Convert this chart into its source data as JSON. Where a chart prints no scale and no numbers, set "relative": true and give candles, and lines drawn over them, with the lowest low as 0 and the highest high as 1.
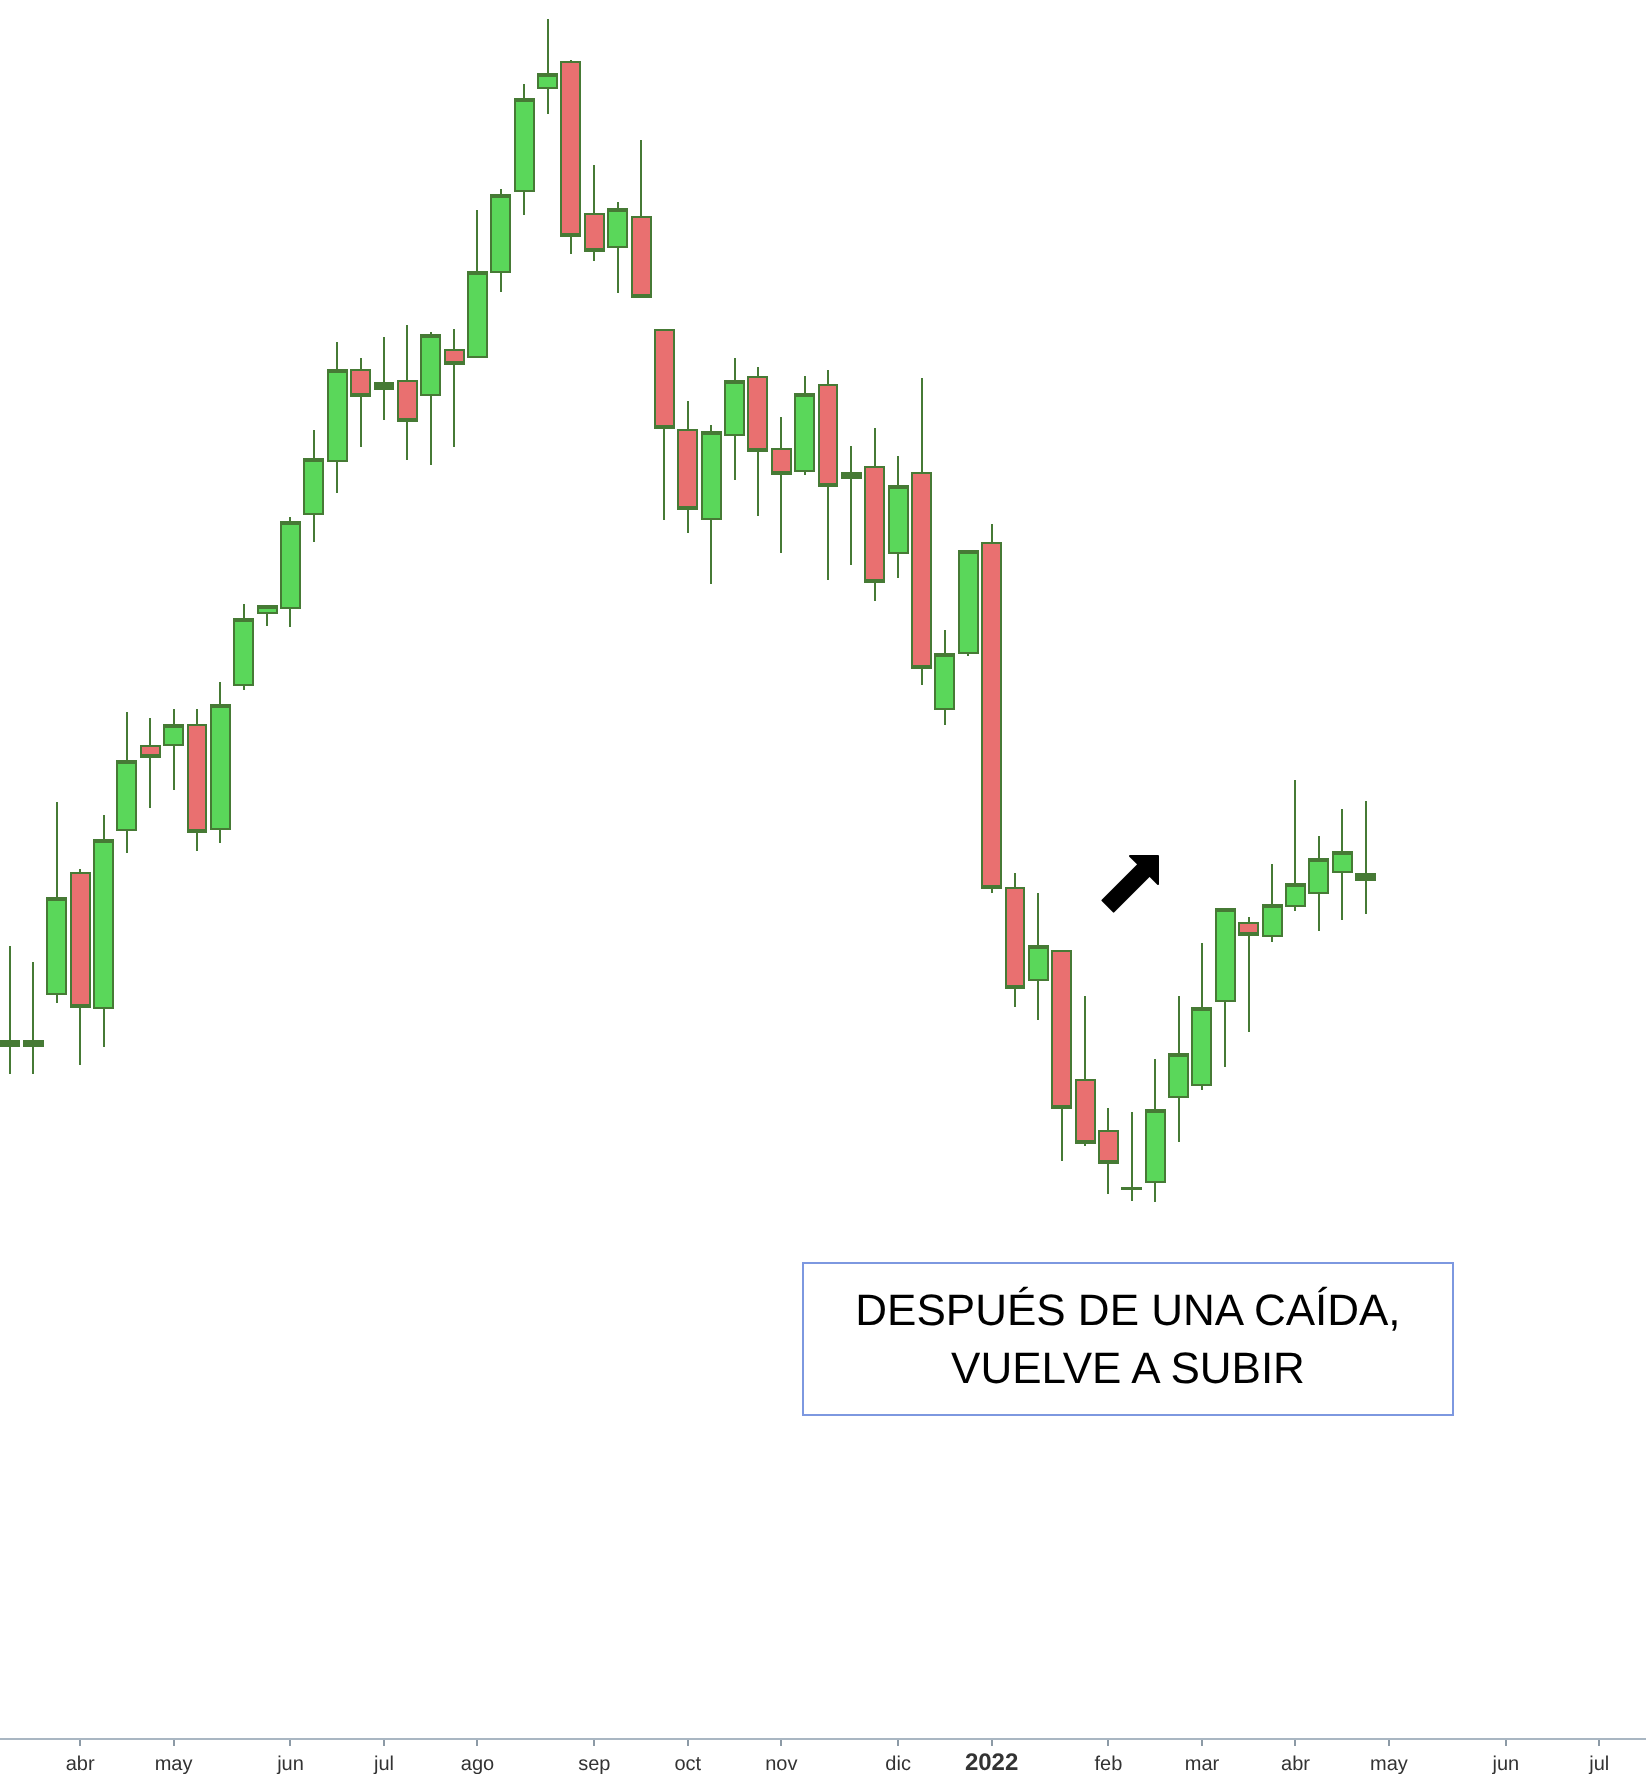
{
  "chart_data": {
    "type": "candlestick",
    "relative": true,
    "x": [
      "2021-03-15",
      "2021-03-22",
      "2021-03-29",
      "2021-04-05",
      "2021-04-12",
      "2021-04-19",
      "2021-04-26",
      "2021-05-03",
      "2021-05-10",
      "2021-05-17",
      "2021-05-24",
      "2021-05-31",
      "2021-06-07",
      "2021-06-14",
      "2021-06-21",
      "2021-06-28",
      "2021-07-05",
      "2021-07-12",
      "2021-07-19",
      "2021-07-26",
      "2021-08-02",
      "2021-08-09",
      "2021-08-16",
      "2021-08-23",
      "2021-08-30",
      "2021-09-06",
      "2021-09-13",
      "2021-09-20",
      "2021-09-27",
      "2021-10-04",
      "2021-10-11",
      "2021-10-18",
      "2021-10-25",
      "2021-11-01",
      "2021-11-08",
      "2021-11-15",
      "2021-11-22",
      "2021-11-29",
      "2021-12-06",
      "2021-12-13",
      "2021-12-20",
      "2021-12-27",
      "2022-01-03",
      "2022-01-10",
      "2022-01-17",
      "2022-01-24",
      "2022-01-31",
      "2022-02-07",
      "2022-02-14",
      "2022-02-21",
      "2022-02-28",
      "2022-03-07",
      "2022-03-14",
      "2022-03-21",
      "2022-03-28",
      "2022-04-04",
      "2022-04-11",
      "2022-04-18",
      "2022-04-25"
    ],
    "ohlc": [
      [
        0.132,
        0.216,
        0.108,
        0.136
      ],
      [
        0.132,
        0.203,
        0.108,
        0.136
      ],
      [
        0.176,
        0.338,
        0.168,
        0.257
      ],
      [
        0.278,
        0.281,
        0.116,
        0.165
      ],
      [
        0.164,
        0.327,
        0.131,
        0.306
      ],
      [
        0.314,
        0.414,
        0.295,
        0.373
      ],
      [
        0.385,
        0.409,
        0.333,
        0.376
      ],
      [
        0.386,
        0.417,
        0.348,
        0.403
      ],
      [
        0.403,
        0.417,
        0.297,
        0.313
      ],
      [
        0.315,
        0.439,
        0.303,
        0.42
      ],
      [
        0.437,
        0.505,
        0.433,
        0.493
      ],
      [
        0.498,
        0.504,
        0.487,
        0.504
      ],
      [
        0.502,
        0.579,
        0.486,
        0.575
      ],
      [
        0.581,
        0.652,
        0.558,
        0.628
      ],
      [
        0.626,
        0.727,
        0.599,
        0.703
      ],
      [
        0.703,
        0.713,
        0.638,
        0.681
      ],
      [
        0.687,
        0.731,
        0.661,
        0.692
      ],
      [
        0.694,
        0.741,
        0.627,
        0.66
      ],
      [
        0.682,
        0.735,
        0.623,
        0.733
      ],
      [
        0.72,
        0.738,
        0.638,
        0.708
      ],
      [
        0.714,
        0.838,
        0.714,
        0.786
      ],
      [
        0.786,
        0.856,
        0.769,
        0.851
      ],
      [
        0.854,
        0.945,
        0.834,
        0.932
      ],
      [
        0.941,
        1,
        0.919,
        0.953
      ],
      [
        0.963,
        0.965,
        0.801,
        0.816
      ],
      [
        0.835,
        0.876,
        0.795,
        0.804
      ],
      [
        0.807,
        0.845,
        0.768,
        0.839
      ],
      [
        0.832,
        0.897,
        0.765,
        0.765
      ],
      [
        0.737,
        0.737,
        0.576,
        0.654
      ],
      [
        0.652,
        0.677,
        0.565,
        0.586
      ],
      [
        0.577,
        0.657,
        0.522,
        0.651
      ],
      [
        0.648,
        0.713,
        0.61,
        0.694
      ],
      [
        0.697,
        0.706,
        0.58,
        0.635
      ],
      [
        0.636,
        0.663,
        0.548,
        0.615
      ],
      [
        0.618,
        0.698,
        0.614,
        0.683
      ],
      [
        0.69,
        0.703,
        0.526,
        0.605
      ],
      [
        0.612,
        0.639,
        0.538,
        0.616
      ],
      [
        0.621,
        0.654,
        0.508,
        0.524
      ],
      [
        0.548,
        0.63,
        0.527,
        0.605
      ],
      [
        0.616,
        0.696,
        0.437,
        0.451
      ],
      [
        0.417,
        0.483,
        0.403,
        0.463
      ],
      [
        0.464,
        0.55,
        0.461,
        0.55
      ],
      [
        0.557,
        0.573,
        0.261,
        0.265
      ],
      [
        0.265,
        0.278,
        0.165,
        0.181
      ],
      [
        0.188,
        0.261,
        0.154,
        0.216
      ],
      [
        0.212,
        0.212,
        0.035,
        0.079
      ],
      [
        0.103,
        0.174,
        0.047,
        0.05
      ],
      [
        0.06,
        0.079,
        0.007,
        0.033
      ],
      [
        0.011,
        0.076,
        0.001,
        0.012
      ],
      [
        0.017,
        0.121,
        0,
        0.078
      ],
      [
        0.089,
        0.174,
        0.051,
        0.125
      ],
      [
        0.099,
        0.219,
        0.095,
        0.164
      ],
      [
        0.17,
        0.248,
        0.114,
        0.248
      ],
      [
        0.236,
        0.241,
        0.144,
        0.226
      ],
      [
        0.225,
        0.286,
        0.22,
        0.251
      ],
      [
        0.25,
        0.357,
        0.246,
        0.269
      ],
      [
        0.261,
        0.309,
        0.229,
        0.29
      ],
      [
        0.279,
        0.332,
        0.238,
        0.296
      ],
      [
        0.277,
        0.339,
        0.243,
        0.272
      ]
    ],
    "colors": [
      "#467a35",
      "#467a35",
      "#5ad75a",
      "#e97070",
      "#5ad75a",
      "#5ad75a",
      "#e97070",
      "#5ad75a",
      "#e97070",
      "#5ad75a",
      "#5ad75a",
      "#5ad75a",
      "#5ad75a",
      "#5ad75a",
      "#5ad75a",
      "#e97070",
      "#467a35",
      "#e97070",
      "#5ad75a",
      "#e97070",
      "#5ad75a",
      "#5ad75a",
      "#5ad75a",
      "#5ad75a",
      "#e97070",
      "#e97070",
      "#5ad75a",
      "#e97070",
      "#e97070",
      "#e97070",
      "#5ad75a",
      "#5ad75a",
      "#e97070",
      "#e97070",
      "#5ad75a",
      "#e97070",
      "#467a35",
      "#e97070",
      "#5ad75a",
      "#e97070",
      "#5ad75a",
      "#5ad75a",
      "#e97070",
      "#e97070",
      "#5ad75a",
      "#e97070",
      "#e97070",
      "#e97070",
      "#467a35",
      "#5ad75a",
      "#5ad75a",
      "#5ad75a",
      "#5ad75a",
      "#e97070",
      "#5ad75a",
      "#5ad75a",
      "#5ad75a",
      "#5ad75a",
      "#467a35"
    ],
    "xlim": [
      "2021-03-12",
      "2022-07-18"
    ],
    "xticks": [
      {
        "value": "2021-04-05",
        "label": "abr"
      },
      {
        "value": "2021-05-03",
        "label": "may"
      },
      {
        "value": "2021-06-07",
        "label": "jun"
      },
      {
        "value": "2021-07-05",
        "label": "jul"
      },
      {
        "value": "2021-08-02",
        "label": "ago"
      },
      {
        "value": "2021-09-06",
        "label": "sep"
      },
      {
        "value": "2021-10-04",
        "label": "oct"
      },
      {
        "value": "2021-11-01",
        "label": "nov"
      },
      {
        "value": "2021-12-06",
        "label": "dic"
      },
      {
        "value": "2022-01-03",
        "label": "2022"
      },
      {
        "value": "2022-02-07",
        "label": "feb"
      },
      {
        "value": "2022-03-07",
        "label": "mar"
      },
      {
        "value": "2022-04-04",
        "label": "abr"
      },
      {
        "value": "2022-05-02",
        "label": "may"
      },
      {
        "value": "2022-06-06",
        "label": "jun"
      },
      {
        "value": "2022-07-04",
        "label": "jul"
      }
    ],
    "tick_labels": "x",
    "annotations": [
      "DESPUÉS DE UNA CAÍDA,\nVUELVE A SUBIR"
    ]
  }
}
